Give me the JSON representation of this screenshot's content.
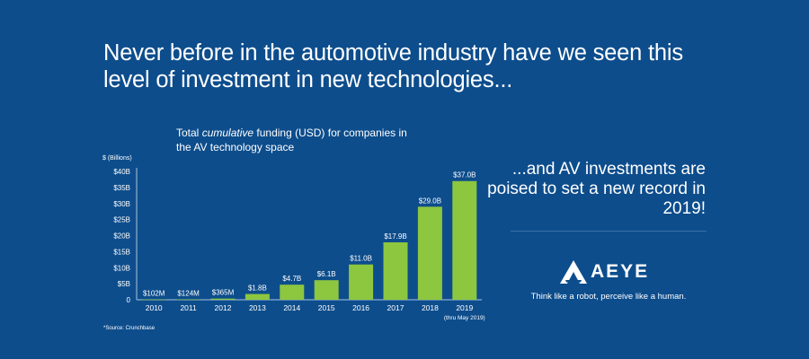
{
  "headline": "Never before in the automotive industry have we seen this level of investment in new technologies...",
  "chart_title_pre": "Total ",
  "chart_title_em": "cumulative",
  "chart_title_post": " funding (USD) for companies in the AV technology space",
  "tagline": "...and AV investments are poised to set a new record in 2019!",
  "brand": {
    "wordmark": "AEYE",
    "slogan": "Think like a robot, perceive like a human.",
    "logo_icon": "triangle-logo-icon"
  },
  "source": "*Source: Crunchbase",
  "colors": {
    "background": "#0d4d8c",
    "bar": "#8dc63f",
    "text": "#ffffff",
    "axis": "#a9c4df"
  },
  "chart_data": {
    "type": "bar",
    "ylabel": "$ (Billions)",
    "categories": [
      "2010",
      "2011",
      "2012",
      "2013",
      "2014",
      "2015",
      "2016",
      "2017",
      "2018",
      "2019"
    ],
    "category_notes": [
      "",
      "",
      "",
      "",
      "",
      "",
      "",
      "",
      "",
      "(thru May 2019)"
    ],
    "values": [
      0.102,
      0.124,
      0.365,
      1.8,
      4.7,
      6.1,
      11.0,
      17.9,
      29.0,
      37.0
    ],
    "data_labels": [
      "$102M",
      "$124M",
      "$365M",
      "$1.8B",
      "$4.7B",
      "$6.1B",
      "$11.0B",
      "$17.9B",
      "$29.0B",
      "$37.0B"
    ],
    "yticks": [
      0,
      5,
      10,
      15,
      20,
      25,
      30,
      35,
      40
    ],
    "ytick_labels": [
      "0",
      "$5B",
      "$10B",
      "$15B",
      "$20B",
      "$25B",
      "$30B",
      "$35B",
      "$40B"
    ],
    "ylim": [
      0,
      40
    ],
    "grid": false
  }
}
